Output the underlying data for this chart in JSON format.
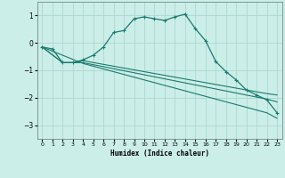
{
  "xlabel": "Humidex (Indice chaleur)",
  "background_color": "#cceee8",
  "grid_color": "#aad8d0",
  "line_color": "#1a7a70",
  "xlim": [
    -0.5,
    23.5
  ],
  "ylim": [
    -3.5,
    1.5
  ],
  "yticks": [
    -3,
    -2,
    -1,
    0,
    1
  ],
  "xticks": [
    0,
    1,
    2,
    3,
    4,
    5,
    6,
    7,
    8,
    9,
    10,
    11,
    12,
    13,
    14,
    15,
    16,
    17,
    18,
    19,
    20,
    21,
    22,
    23
  ],
  "series1": [
    [
      0,
      -0.15
    ],
    [
      1,
      -0.22
    ],
    [
      2,
      -0.72
    ],
    [
      3,
      -0.72
    ],
    [
      4,
      -0.62
    ],
    [
      5,
      -0.45
    ],
    [
      6,
      -0.15
    ],
    [
      7,
      0.38
    ],
    [
      8,
      0.45
    ],
    [
      9,
      0.88
    ],
    [
      10,
      0.95
    ],
    [
      11,
      0.88
    ],
    [
      12,
      0.82
    ],
    [
      13,
      0.95
    ],
    [
      14,
      1.05
    ],
    [
      15,
      0.52
    ],
    [
      16,
      0.08
    ],
    [
      17,
      -0.68
    ],
    [
      18,
      -1.05
    ],
    [
      19,
      -1.35
    ],
    [
      20,
      -1.72
    ],
    [
      21,
      -1.9
    ],
    [
      22,
      -2.08
    ],
    [
      23,
      -2.55
    ]
  ],
  "series2": [
    [
      0,
      -0.15
    ],
    [
      2,
      -0.72
    ],
    [
      3,
      -0.72
    ],
    [
      4,
      -0.65
    ],
    [
      22,
      -1.85
    ],
    [
      23,
      -1.9
    ]
  ],
  "series3": [
    [
      0,
      -0.15
    ],
    [
      2,
      -0.72
    ],
    [
      4,
      -0.72
    ],
    [
      22,
      -2.05
    ],
    [
      23,
      -2.15
    ]
  ],
  "series4": [
    [
      0,
      -0.15
    ],
    [
      4,
      -0.75
    ],
    [
      22,
      -2.55
    ],
    [
      23,
      -2.75
    ]
  ]
}
